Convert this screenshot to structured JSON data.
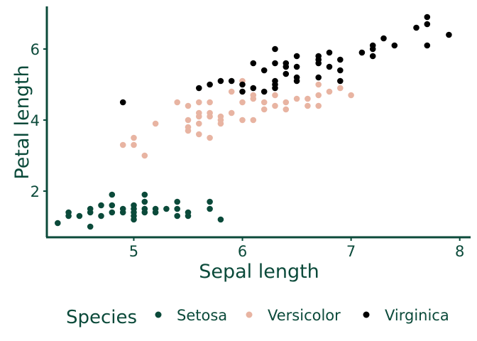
{
  "chart_data": {
    "type": "scatter",
    "title": "",
    "xlabel": "Sepal length",
    "ylabel": "Petal length",
    "xlim": [
      4.2,
      8.1
    ],
    "ylim": [
      0.7,
      7.2
    ],
    "xticks": [
      5,
      6,
      7,
      8
    ],
    "yticks": [
      2,
      4,
      6
    ],
    "grid": false,
    "legend": {
      "title": "Species",
      "position": "bottom"
    },
    "colors": {
      "axis": "#0b4a3a",
      "text": "#0b4a3a"
    },
    "series": [
      {
        "name": "Setosa",
        "color": "#0b4a3a",
        "points": [
          [
            4.3,
            1.1
          ],
          [
            4.4,
            1.3
          ],
          [
            4.4,
            1.4
          ],
          [
            4.5,
            1.3
          ],
          [
            4.6,
            1.0
          ],
          [
            4.6,
            1.4
          ],
          [
            4.6,
            1.5
          ],
          [
            4.7,
            1.3
          ],
          [
            4.7,
            1.6
          ],
          [
            4.8,
            1.4
          ],
          [
            4.8,
            1.6
          ],
          [
            4.8,
            1.9
          ],
          [
            4.9,
            1.4
          ],
          [
            4.9,
            1.5
          ],
          [
            5.0,
            1.2
          ],
          [
            5.0,
            1.3
          ],
          [
            5.0,
            1.4
          ],
          [
            5.0,
            1.5
          ],
          [
            5.0,
            1.6
          ],
          [
            5.1,
            1.4
          ],
          [
            5.1,
            1.5
          ],
          [
            5.1,
            1.7
          ],
          [
            5.1,
            1.9
          ],
          [
            5.2,
            1.4
          ],
          [
            5.2,
            1.5
          ],
          [
            5.3,
            1.5
          ],
          [
            5.4,
            1.3
          ],
          [
            5.4,
            1.5
          ],
          [
            5.4,
            1.7
          ],
          [
            5.5,
            1.3
          ],
          [
            5.5,
            1.4
          ],
          [
            5.7,
            1.5
          ],
          [
            5.7,
            1.7
          ],
          [
            5.8,
            1.2
          ]
        ]
      },
      {
        "name": "Versicolor",
        "color": "#e8b4a2",
        "points": [
          [
            4.9,
            3.3
          ],
          [
            5.0,
            3.3
          ],
          [
            5.0,
            3.5
          ],
          [
            5.1,
            3.0
          ],
          [
            5.2,
            3.9
          ],
          [
            5.4,
            4.5
          ],
          [
            5.5,
            3.7
          ],
          [
            5.5,
            3.8
          ],
          [
            5.5,
            4.0
          ],
          [
            5.5,
            4.4
          ],
          [
            5.6,
            3.6
          ],
          [
            5.6,
            3.9
          ],
          [
            5.6,
            4.1
          ],
          [
            5.6,
            4.2
          ],
          [
            5.6,
            4.5
          ],
          [
            5.7,
            3.5
          ],
          [
            5.7,
            4.1
          ],
          [
            5.7,
            4.2
          ],
          [
            5.7,
            4.5
          ],
          [
            5.8,
            3.9
          ],
          [
            5.8,
            4.0
          ],
          [
            5.8,
            4.1
          ],
          [
            5.9,
            4.2
          ],
          [
            5.9,
            4.8
          ],
          [
            6.0,
            4.0
          ],
          [
            6.0,
            4.5
          ],
          [
            6.0,
            5.1
          ],
          [
            6.1,
            4.0
          ],
          [
            6.1,
            4.6
          ],
          [
            6.1,
            4.7
          ],
          [
            6.2,
            4.3
          ],
          [
            6.2,
            4.5
          ],
          [
            6.3,
            4.4
          ],
          [
            6.3,
            4.7
          ],
          [
            6.4,
            4.3
          ],
          [
            6.4,
            4.5
          ],
          [
            6.5,
            4.6
          ],
          [
            6.6,
            4.4
          ],
          [
            6.6,
            4.6
          ],
          [
            6.7,
            4.4
          ],
          [
            6.7,
            4.7
          ],
          [
            6.7,
            5.0
          ],
          [
            6.8,
            4.8
          ],
          [
            6.9,
            4.9
          ],
          [
            7.0,
            4.7
          ]
        ]
      },
      {
        "name": "Virginica",
        "color": "#000000",
        "points": [
          [
            4.9,
            4.5
          ],
          [
            5.6,
            4.9
          ],
          [
            5.7,
            5.0
          ],
          [
            5.8,
            5.1
          ],
          [
            5.9,
            5.1
          ],
          [
            6.0,
            4.8
          ],
          [
            6.0,
            5.0
          ],
          [
            6.1,
            4.9
          ],
          [
            6.1,
            5.6
          ],
          [
            6.2,
            4.8
          ],
          [
            6.2,
            5.4
          ],
          [
            6.3,
            4.9
          ],
          [
            6.3,
            5.0
          ],
          [
            6.3,
            5.1
          ],
          [
            6.3,
            5.6
          ],
          [
            6.3,
            6.0
          ],
          [
            6.4,
            5.3
          ],
          [
            6.4,
            5.5
          ],
          [
            6.4,
            5.6
          ],
          [
            6.5,
            5.1
          ],
          [
            6.5,
            5.2
          ],
          [
            6.5,
            5.5
          ],
          [
            6.5,
            5.8
          ],
          [
            6.7,
            5.2
          ],
          [
            6.7,
            5.6
          ],
          [
            6.7,
            5.7
          ],
          [
            6.7,
            5.8
          ],
          [
            6.8,
            5.5
          ],
          [
            6.8,
            5.9
          ],
          [
            6.9,
            5.1
          ],
          [
            6.9,
            5.4
          ],
          [
            6.9,
            5.7
          ],
          [
            7.1,
            5.9
          ],
          [
            7.2,
            5.8
          ],
          [
            7.2,
            6.0
          ],
          [
            7.2,
            6.1
          ],
          [
            7.3,
            6.3
          ],
          [
            7.4,
            6.1
          ],
          [
            7.6,
            6.6
          ],
          [
            7.7,
            6.1
          ],
          [
            7.7,
            6.7
          ],
          [
            7.7,
            6.9
          ],
          [
            7.9,
            6.4
          ]
        ]
      }
    ]
  }
}
